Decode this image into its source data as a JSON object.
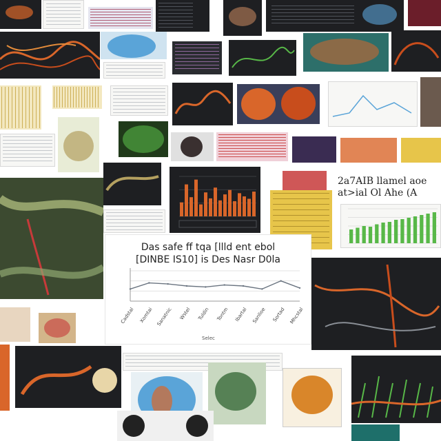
{
  "collage": {
    "description_role": "mosaic of figure thumbnails",
    "main_chart": {
      "title_line1": "Das safe ff tqa [llld ent ebol",
      "title_line2": "[DINBE IS10] is Des Nasr D0la",
      "x_tick_labels": [
        "Cadstal",
        "Xomtai",
        "Sanatnic",
        "Wstel",
        "Tuldin",
        "Tontm",
        "Ibartal",
        "Sanlioe",
        "Sortad",
        "Mhcstal"
      ],
      "x_caption": "Selec"
    },
    "side_heading": {
      "line1": "2a7AIB llamel aoe",
      "line2": "at>ial Ol Ahe (A"
    }
  },
  "colors": {
    "accent_orange": "#d9662a",
    "accent_green": "#58b848",
    "accent_yellow": "#e7c54a",
    "accent_blue": "#5aa4d8",
    "accent_red": "#c73a3a",
    "dark_tile": "#1e1f22"
  },
  "chart_data": [
    {
      "type": "line",
      "title": "Das safe ff tqa [llld ent ebol",
      "subtitle": "[DINBE IS10] is Des Nasr D0la",
      "categories": [
        "Cadstal",
        "Xomtai",
        "Sanatnic",
        "Wstel",
        "Tuldin",
        "Tontm",
        "Ibartal",
        "Sanlioe",
        "Sortad",
        "Mhcstal"
      ],
      "values": [
        52,
        58,
        57,
        55,
        54,
        56,
        55,
        52,
        60,
        53
      ],
      "xlabel": "Selec",
      "ylabel": "",
      "grid": true
    },
    {
      "type": "bar",
      "values": [
        35,
        80,
        48,
        92,
        30,
        60,
        45,
        72,
        40,
        55,
        66,
        38,
        58,
        50,
        44,
        62
      ],
      "grid": true
    },
    {
      "type": "bar",
      "values": [
        40,
        45,
        50,
        48,
        55,
        60,
        62,
        68,
        70,
        74,
        78,
        82,
        86,
        90
      ],
      "grid": true
    }
  ]
}
